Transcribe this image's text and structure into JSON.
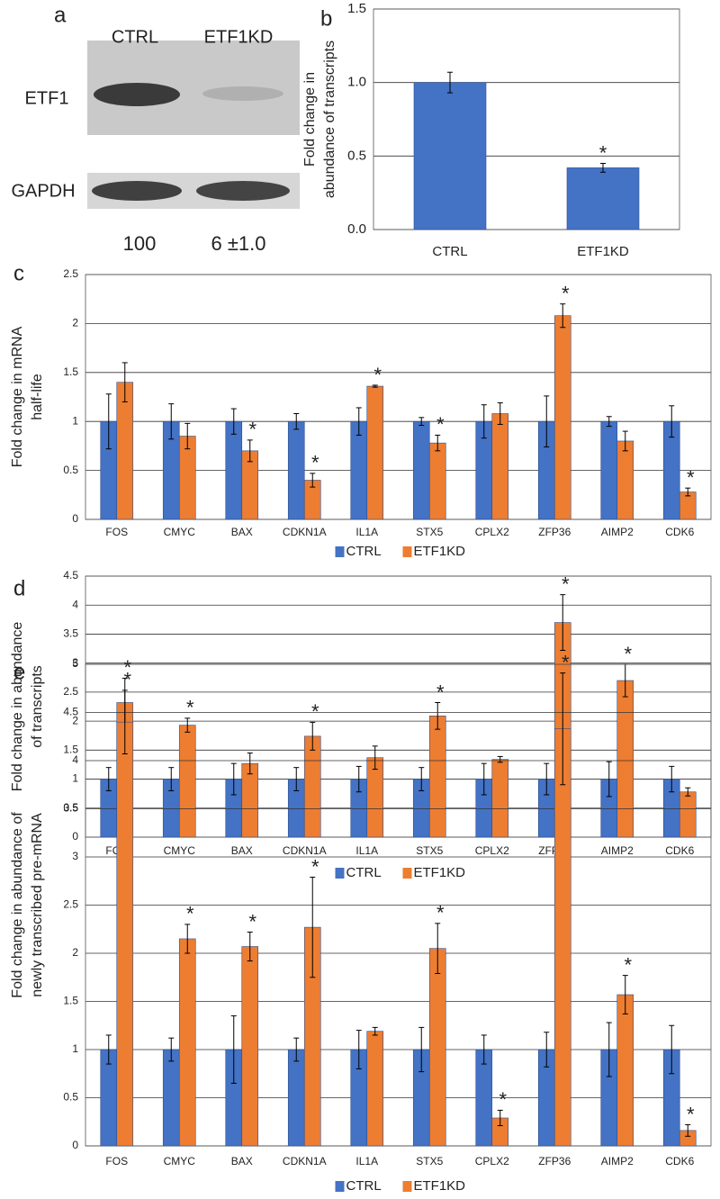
{
  "chart_data": [
    {
      "type": "blot",
      "panel_label": "a",
      "lanes": [
        "CTRL",
        "ETF1KD"
      ],
      "rows": [
        "ETF1",
        "GAPDH"
      ],
      "quantification": [
        "100",
        "6 ±1.0"
      ]
    },
    {
      "type": "bar",
      "panel_label": "b",
      "y_label": [
        "Fold change in",
        "abundance of transcripts"
      ],
      "categories": [
        "CTRL",
        "ETF1KD"
      ],
      "values": [
        1.0,
        0.42
      ],
      "errors": [
        0.07,
        0.03
      ],
      "annotations": [
        null,
        "*"
      ],
      "color": "#4472c4",
      "ylim": [
        0,
        1.5
      ],
      "yticks": [
        {
          "value": 0,
          "label": "0.0"
        },
        {
          "value": 0.5,
          "label": "0.5"
        },
        {
          "value": 1,
          "label": "1.0"
        },
        {
          "value": 1.5,
          "label": "1.5"
        }
      ],
      "grid": true
    },
    {
      "type": "bar",
      "panel_label": "c",
      "y_label": [
        "Fold change in mRNA",
        "half-life"
      ],
      "categories": [
        "FOS",
        "CMYC",
        "BAX",
        "CDKN1A",
        "IL1A",
        "STX5",
        "CPLX2",
        "ZFP36",
        "AIMP2",
        "CDK6"
      ],
      "series": [
        {
          "name": "CTRL",
          "color": "#4472c4",
          "values": [
            1,
            1,
            1,
            1,
            1,
            1,
            1,
            1,
            1,
            1
          ],
          "errors": [
            0.28,
            0.18,
            0.13,
            0.08,
            0.14,
            0.04,
            0.17,
            0.26,
            0.05,
            0.16
          ]
        },
        {
          "name": "ETF1KD",
          "color": "#ed7d31",
          "values": [
            1.4,
            0.85,
            0.7,
            0.4,
            1.36,
            0.78,
            1.08,
            2.08,
            0.8,
            0.28
          ],
          "errors": [
            0.2,
            0.13,
            0.11,
            0.07,
            0.01,
            0.08,
            0.11,
            0.12,
            0.1,
            0.04
          ],
          "annotations": [
            null,
            null,
            "*",
            "*",
            "*",
            "*",
            null,
            "*",
            null,
            "*"
          ]
        }
      ],
      "ylim": [
        0,
        2.5
      ],
      "yticks": [
        0,
        0.5,
        1,
        1.5,
        2,
        2.5
      ],
      "grid": true,
      "legend": "bottom"
    },
    {
      "type": "bar",
      "panel_label": "d",
      "y_label": [
        "Fold change in abundance",
        "of transcripts"
      ],
      "categories": [
        "FOS",
        "CMYC",
        "BAX",
        "CDKN1A",
        "IL1A",
        "STX5",
        "CPLX2",
        "ZFP36",
        "AIMP2",
        "CDK6"
      ],
      "series": [
        {
          "name": "CTRL",
          "color": "#4472c4",
          "values": [
            1,
            1,
            1,
            1,
            1,
            1,
            1,
            1,
            1,
            1
          ],
          "errors": [
            0.2,
            0.2,
            0.27,
            0.2,
            0.22,
            0.2,
            0.27,
            0.27,
            0.3,
            0.22
          ]
        },
        {
          "name": "ETF1KD",
          "color": "#ed7d31",
          "values": [
            2.32,
            1.93,
            1.27,
            1.74,
            1.37,
            2.09,
            1.34,
            3.7,
            2.7,
            0.78
          ],
          "errors": [
            0.42,
            0.12,
            0.18,
            0.24,
            0.2,
            0.23,
            0.05,
            0.48,
            0.28,
            0.07
          ],
          "annotations": [
            "*",
            "*",
            null,
            "*",
            null,
            "*",
            null,
            "*",
            "*",
            null
          ]
        }
      ],
      "ylim": [
        0,
        4.5
      ],
      "yticks": [
        0,
        0.5,
        1,
        1.5,
        2,
        2.5,
        3,
        3.5,
        4,
        4.5
      ],
      "grid": true,
      "legend": "bottom"
    },
    {
      "type": "bar",
      "panel_label": "e",
      "y_label": [
        "Fold change in abundance of",
        "newly transcribed  pre-mRNA"
      ],
      "categories": [
        "FOS",
        "CMYC",
        "BAX",
        "CDKN1A",
        "IL1A",
        "STX5",
        "CPLX2",
        "ZFP36",
        "AIMP2",
        "CDK6"
      ],
      "series": [
        {
          "name": "CTRL",
          "color": "#4472c4",
          "values": [
            1,
            1,
            1,
            1,
            1,
            1,
            1,
            1,
            1,
            1
          ],
          "errors": [
            0.15,
            0.12,
            0.35,
            0.12,
            0.2,
            0.23,
            0.15,
            0.18,
            0.28,
            0.25
          ]
        },
        {
          "name": "ETF1KD",
          "color": "#ed7d31",
          "values": [
            4.4,
            2.15,
            2.07,
            2.27,
            1.19,
            2.05,
            0.29,
            4.33,
            1.57,
            0.16
          ],
          "errors": [
            0.33,
            0.15,
            0.15,
            0.52,
            0.04,
            0.26,
            0.08,
            0.58,
            0.2,
            0.06
          ],
          "annotations": [
            "*",
            "*",
            "*",
            "*",
            null,
            "*",
            "*",
            "*",
            "*",
            "*"
          ]
        }
      ],
      "ylim": [
        0,
        5
      ],
      "yticks": [
        0,
        0.5,
        1,
        1.5,
        2,
        2.5,
        3,
        3.5,
        4,
        4.5,
        5
      ],
      "grid": true,
      "legend": "bottom"
    }
  ]
}
